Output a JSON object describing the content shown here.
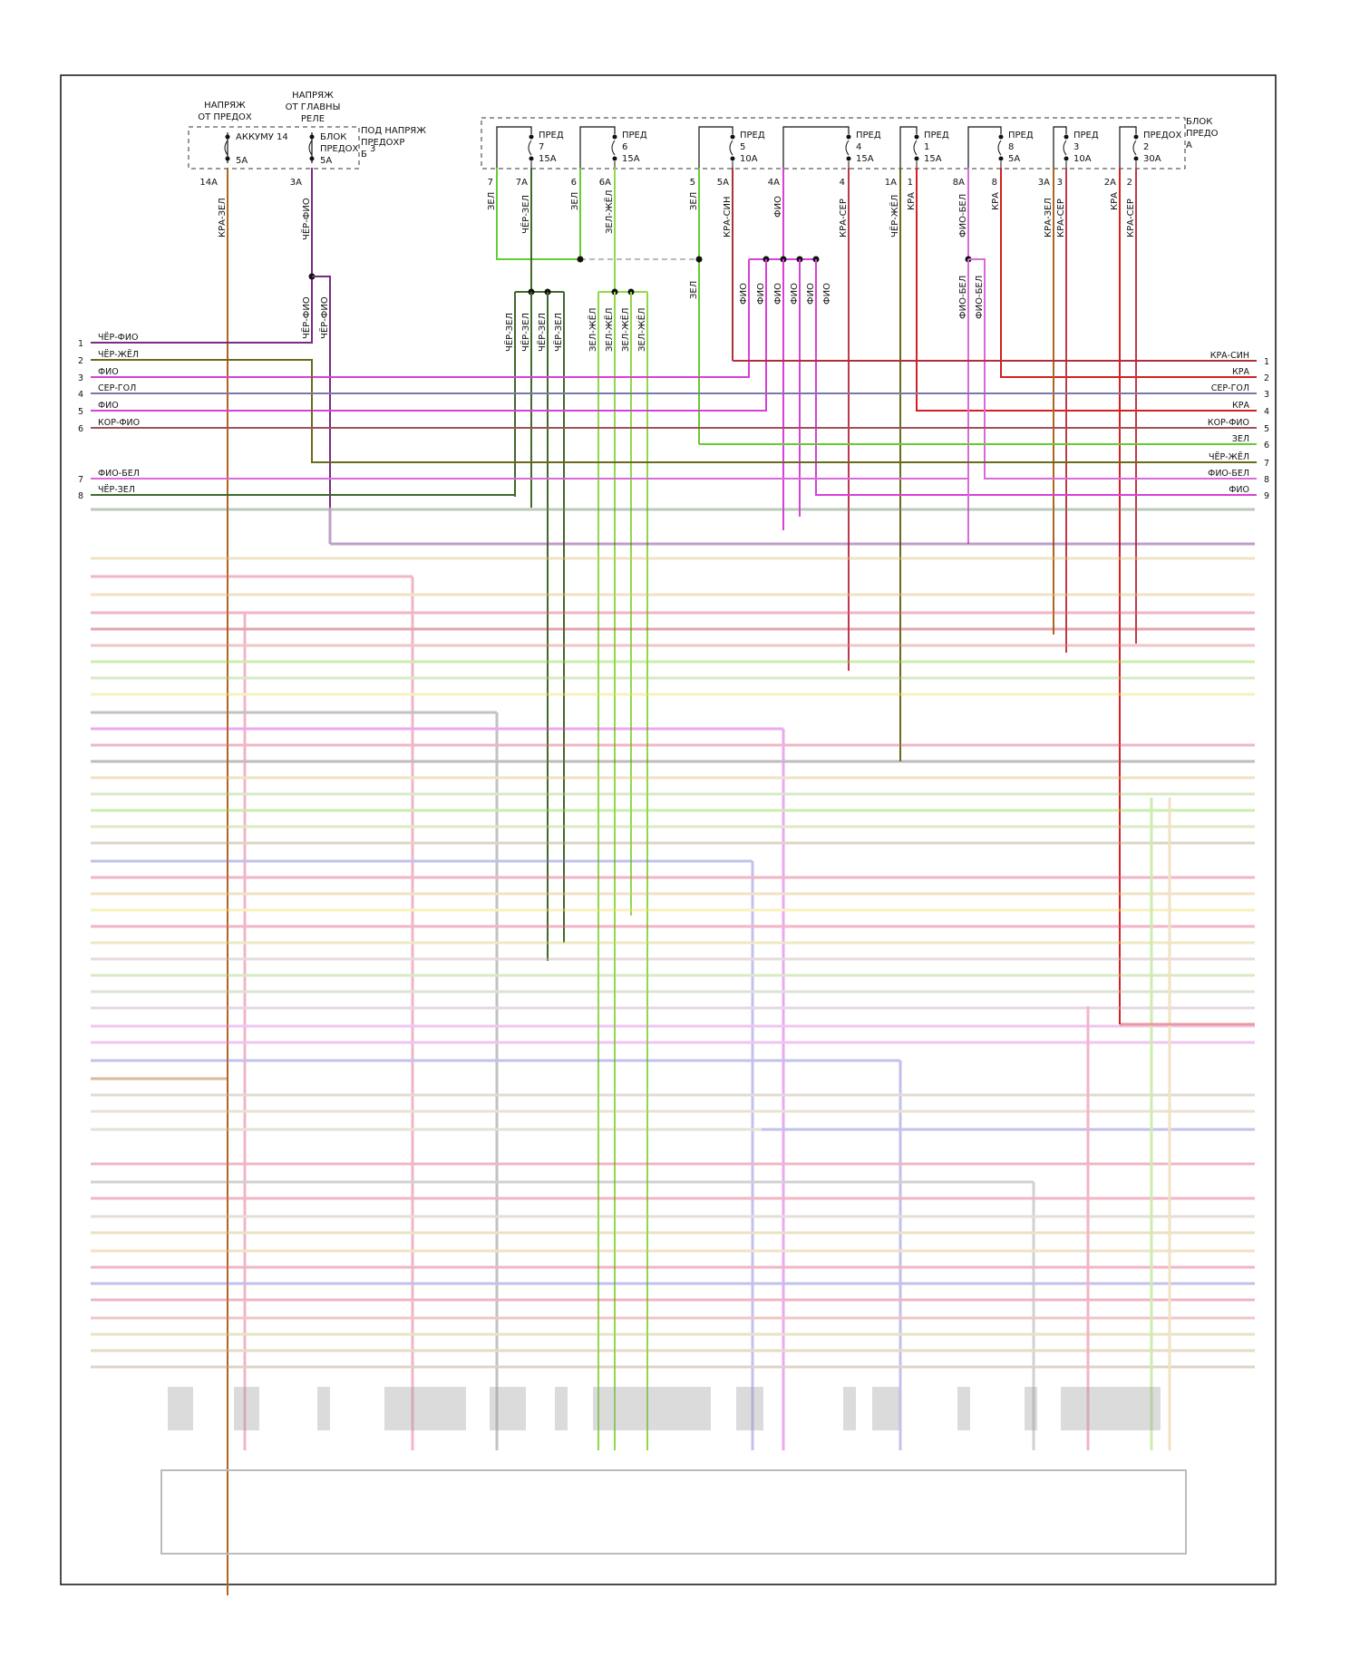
{
  "fuse_labels": {
    "volt_from_fuse": [
      "НАПРЯЖ",
      "ОТ ПРЕДОХ"
    ],
    "volt_from_relay": [
      "НАПРЯЖ",
      "ОТ ГЛАВНЫ",
      "РЕЛЕ"
    ],
    "hot_fuse_block": [
      "ПОД НАПРЯЖ",
      "ПРЕДОХР",
      "Б"
    ],
    "fuse_block_a": [
      "БЛОК",
      "ПРЕДО",
      "А"
    ],
    "akkumu_fuse": "АККУМУ 14",
    "akkumu_amp": "5A",
    "akkumu_pin": "14A",
    "blok_fuse": [
      "БЛОК",
      "ПРЕДОХ",
      "3"
    ],
    "blok_amp": "5A",
    "blok_pin": "3A"
  },
  "fuses": [
    {
      "name": "ПРЕД",
      "num": "7",
      "amp": "15A",
      "pin_l": "7",
      "pin_r": "7A"
    },
    {
      "name": "ПРЕД",
      "num": "6",
      "amp": "15A",
      "pin_l": "6",
      "pin_r": "6A"
    },
    {
      "name": "ПРЕД",
      "num": "5",
      "amp": "10A",
      "pin_l": "5",
      "pin_r": "5A"
    },
    {
      "name": "ПРЕД",
      "num": "4",
      "amp": "15A",
      "pin_l": "4A",
      "pin_r": "4"
    },
    {
      "name": "ПРЕД",
      "num": "1",
      "amp": "15A",
      "pin_l": "1A",
      "pin_r": "1"
    },
    {
      "name": "ПРЕД",
      "num": "8",
      "amp": "5A",
      "pin_l": "8A",
      "pin_r": "8"
    },
    {
      "name": "ПРЕД",
      "num": "3",
      "amp": "10A",
      "pin_l": "3A",
      "pin_r": "3"
    },
    {
      "name": "ПРЕДОХ",
      "num": "2",
      "amp": "30A",
      "pin_l": "2A",
      "pin_r": "2"
    }
  ],
  "vertical_wire_labels": {
    "kra_zel": "КРА-ЗЕЛ",
    "cher_fio": "ЧЁР-ФИО",
    "zel": "ЗЕЛ",
    "cher_zel": "ЧЁР-ЗЕЛ",
    "zel_zhel": "ЗЕЛ-ЖЁЛ",
    "kra_sin": "КРА-СИН",
    "fio": "ФИО",
    "kra_ser": "КРА-СЕР",
    "cher_zhel": "ЧЁР-ЖЁЛ",
    "kra": "КРА",
    "fio_bel": "ФИО-БЕЛ"
  },
  "left_connector": [
    {
      "pin": "1",
      "wire": "ЧЁР-ФИО",
      "color": "#7a2a86"
    },
    {
      "pin": "2",
      "wire": "ЧЁР-ЖЁЛ",
      "color": "#6b6a1c"
    },
    {
      "pin": "3",
      "wire": "ФИО",
      "color": "#d93fd9"
    },
    {
      "pin": "4",
      "wire": "СЕР-ГОЛ",
      "color": "#7a78a8"
    },
    {
      "pin": "5",
      "wire": "ФИО",
      "color": "#d93fd9"
    },
    {
      "pin": "6",
      "wire": "КОР-ФИО",
      "color": "#a0525a"
    },
    {
      "pin": "7",
      "wire": "ФИО-БЕЛ",
      "color": "#d96bd9"
    },
    {
      "pin": "8",
      "wire": "ЧЁР-ЗЕЛ",
      "color": "#3f6a2a"
    }
  ],
  "right_connector": [
    {
      "pin": "1",
      "wire": "КРА-СИН",
      "color": "#b0303a"
    },
    {
      "pin": "2",
      "wire": "КРА",
      "color": "#d42020"
    },
    {
      "pin": "3",
      "wire": "СЕР-ГОЛ",
      "color": "#7a78a8"
    },
    {
      "pin": "4",
      "wire": "КРА",
      "color": "#d42020"
    },
    {
      "pin": "5",
      "wire": "КОР-ФИО",
      "color": "#a0525a"
    },
    {
      "pin": "6",
      "wire": "ЗЕЛ",
      "color": "#66cc33"
    },
    {
      "pin": "7",
      "wire": "ЧЁР-ЖЁЛ",
      "color": "#6b6a1c"
    },
    {
      "pin": "8",
      "wire": "ФИО-БЕЛ",
      "color": "#d96bd9"
    },
    {
      "pin": "9",
      "wire": "ФИО",
      "color": "#d93fd9"
    }
  ],
  "colors": {
    "border": "#111111",
    "kra_zel": "#b0651f",
    "cher_fio": "#7a2a86",
    "zel": "#66cc33",
    "cher_zel": "#3f6a2a",
    "zel_zhel": "#8fd94a",
    "kra_sin": "#b0303a",
    "fio": "#d93fd9",
    "kra_ser": "#c0394a",
    "cher_zhel": "#6b6a1c",
    "kra": "#d42020",
    "fio_bel": "#d96bd9",
    "ser_gol": "#7a78a8",
    "kor_fio": "#a0525a"
  }
}
